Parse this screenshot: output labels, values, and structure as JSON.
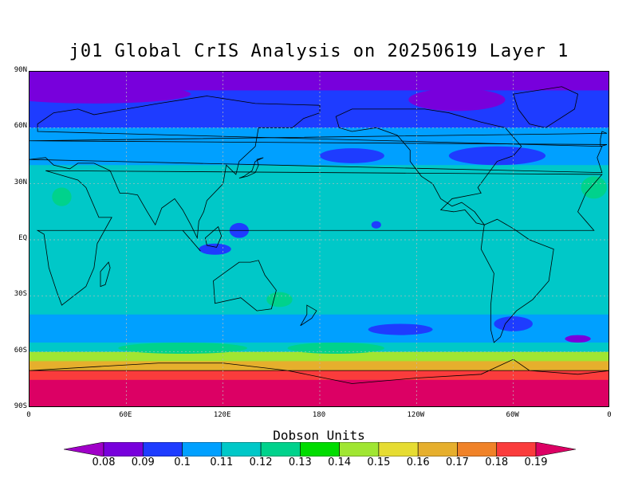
{
  "title": "j01 Global CrIS Analysis on 20250619 Layer 1",
  "colorbar": {
    "title": "Dobson Units",
    "ticks": [
      "0.08",
      "0.09",
      "0.1",
      "0.11",
      "0.12",
      "0.13",
      "0.14",
      "0.15",
      "0.16",
      "0.17",
      "0.18",
      "0.19"
    ],
    "colors": [
      "#a000c8",
      "#7800dc",
      "#1e3cff",
      "#00a0ff",
      "#00c8c8",
      "#00d28c",
      "#00dc00",
      "#a0e632",
      "#e6dc32",
      "#e6af2d",
      "#f08228",
      "#fa3c3c",
      "#dc0064"
    ]
  },
  "lat_labels": [
    "90N",
    "60N",
    "30N",
    "EQ",
    "30S",
    "60S",
    "90S"
  ],
  "lon_labels": [
    "0",
    "60E",
    "120E",
    "180",
    "120W",
    "60W",
    "0"
  ],
  "chart_data": {
    "type": "heatmap",
    "title": "j01 Global CrIS Analysis on 20250619 Layer 1",
    "xlabel": "",
    "ylabel": "",
    "x_range": [
      0,
      360
    ],
    "y_range": [
      -90,
      90
    ],
    "colorbar_label": "Dobson Units",
    "levels": [
      0.08,
      0.09,
      0.1,
      0.11,
      0.12,
      0.13,
      0.14,
      0.15,
      0.16,
      0.17,
      0.18,
      0.19
    ],
    "zonal_profile": [
      {
        "lat": 90,
        "value": 0.085
      },
      {
        "lat": 80,
        "value": 0.088
      },
      {
        "lat": 70,
        "value": 0.095
      },
      {
        "lat": 60,
        "value": 0.098
      },
      {
        "lat": 50,
        "value": 0.105
      },
      {
        "lat": 40,
        "value": 0.112
      },
      {
        "lat": 30,
        "value": 0.115
      },
      {
        "lat": 20,
        "value": 0.118
      },
      {
        "lat": 10,
        "value": 0.113
      },
      {
        "lat": 0,
        "value": 0.108
      },
      {
        "lat": -10,
        "value": 0.112
      },
      {
        "lat": -20,
        "value": 0.115
      },
      {
        "lat": -30,
        "value": 0.118
      },
      {
        "lat": -40,
        "value": 0.113
      },
      {
        "lat": -50,
        "value": 0.095
      },
      {
        "lat": -55,
        "value": 0.105
      },
      {
        "lat": -60,
        "value": 0.13
      },
      {
        "lat": -65,
        "value": 0.15
      },
      {
        "lat": -70,
        "value": 0.175
      },
      {
        "lat": -75,
        "value": 0.19
      },
      {
        "lat": -80,
        "value": 0.19
      },
      {
        "lat": -90,
        "value": 0.195
      }
    ],
    "grid": true
  }
}
